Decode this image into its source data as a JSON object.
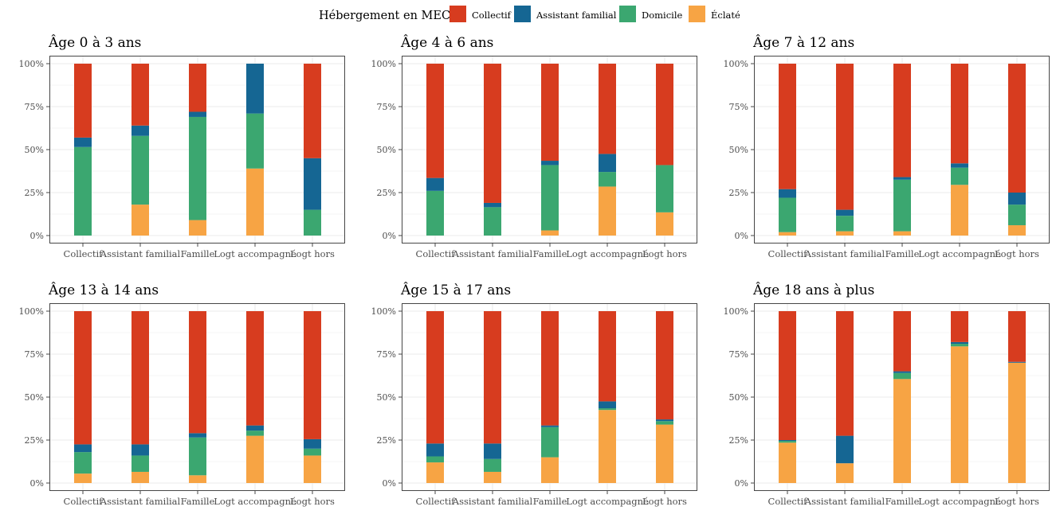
{
  "chart_data": {
    "type": "bar",
    "stacked": true,
    "legend": {
      "title": "Hébergement en MECS",
      "position": "top",
      "items": [
        {
          "name": "Collectif",
          "color": "#D73C1F"
        },
        {
          "name": "Assistant familial",
          "color": "#156693"
        },
        {
          "name": "Domicile",
          "color": "#3BA770"
        },
        {
          "name": "Éclaté",
          "color": "#F7A444"
        }
      ]
    },
    "categories": [
      "Collectif",
      "Assistant familial",
      "Famille",
      "Logt accompagné",
      "Logt hors"
    ],
    "y_ticks": [
      "0%",
      "25%",
      "50%",
      "75%",
      "100%"
    ],
    "ylim": [
      0,
      100
    ],
    "grid": true,
    "panels": [
      {
        "title": "Âge 0 à 3 ans",
        "series": [
          {
            "name": "Éclaté",
            "values": [
              0,
              18,
              9,
              39,
              0
            ]
          },
          {
            "name": "Domicile",
            "values": [
              51.5,
              40,
              60,
              32,
              15
            ]
          },
          {
            "name": "Assistant familial",
            "values": [
              5.5,
              6,
              3,
              29,
              30
            ]
          },
          {
            "name": "Collectif",
            "values": [
              43,
              36,
              28,
              0,
              55
            ]
          }
        ]
      },
      {
        "title": "Âge 4 à 6 ans",
        "series": [
          {
            "name": "Éclaté",
            "values": [
              0,
              0,
              3,
              28.5,
              13.5
            ]
          },
          {
            "name": "Domicile",
            "values": [
              26,
              16.5,
              38,
              8.5,
              27.5
            ]
          },
          {
            "name": "Assistant familial",
            "values": [
              7.5,
              2.5,
              2.5,
              10.5,
              0
            ]
          },
          {
            "name": "Collectif",
            "values": [
              66.5,
              81,
              56.5,
              52.5,
              59
            ]
          }
        ]
      },
      {
        "title": "Âge 7 à 12 ans",
        "series": [
          {
            "name": "Éclaté",
            "values": [
              2,
              2.5,
              2.5,
              29.5,
              6
            ]
          },
          {
            "name": "Domicile",
            "values": [
              20,
              9,
              30,
              10,
              12
            ]
          },
          {
            "name": "Assistant familial",
            "values": [
              5,
              3.5,
              1.5,
              2.5,
              7
            ]
          },
          {
            "name": "Collectif",
            "values": [
              73,
              85,
              66,
              58,
              75
            ]
          }
        ]
      },
      {
        "title": "Âge 13 à 14 ans",
        "series": [
          {
            "name": "Éclaté",
            "values": [
              5.5,
              6.5,
              4.5,
              27.5,
              16
            ]
          },
          {
            "name": "Domicile",
            "values": [
              12.5,
              9.5,
              22,
              3,
              4
            ]
          },
          {
            "name": "Assistant familial",
            "values": [
              4.5,
              6.5,
              2.5,
              3,
              5.5
            ]
          },
          {
            "name": "Collectif",
            "values": [
              77.5,
              77.5,
              71,
              66.5,
              74.5
            ]
          }
        ]
      },
      {
        "title": "Âge 15 à 17 ans",
        "series": [
          {
            "name": "Éclaté",
            "values": [
              12,
              6.5,
              15,
              42.5,
              34
            ]
          },
          {
            "name": "Domicile",
            "values": [
              3.5,
              7.5,
              17.5,
              1,
              2
            ]
          },
          {
            "name": "Assistant familial",
            "values": [
              7.5,
              9,
              1,
              4,
              1
            ]
          },
          {
            "name": "Collectif",
            "values": [
              77,
              77,
              66.5,
              52.5,
              63
            ]
          }
        ]
      },
      {
        "title": "Âge 18 ans à plus",
        "series": [
          {
            "name": "Éclaté",
            "values": [
              23.5,
              11.5,
              60.5,
              79.5,
              70
            ]
          },
          {
            "name": "Domicile",
            "values": [
              1,
              0,
              3.5,
              1.5,
              0
            ]
          },
          {
            "name": "Assistant familial",
            "values": [
              0.5,
              16,
              1,
              1,
              0.5
            ]
          },
          {
            "name": "Collectif",
            "values": [
              75,
              72.5,
              35,
              18,
              29.5
            ]
          }
        ]
      }
    ]
  }
}
